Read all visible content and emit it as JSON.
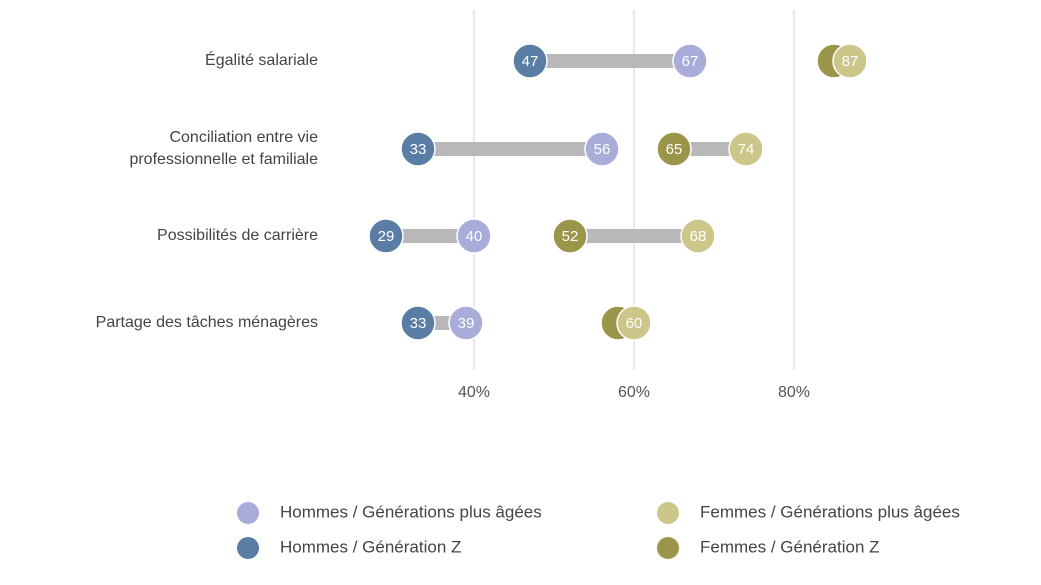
{
  "chart_data": {
    "type": "dumbbell",
    "categories": [
      "Égalité salariale",
      [
        "Conciliation entre vie",
        "professionnelle et familiale"
      ],
      "Possibilités de carrière",
      "Partage des tâches ménagères"
    ],
    "series": [
      {
        "name": "Hommes / Générations plus âgées",
        "color": "#a7acd9",
        "values": [
          67,
          56,
          40,
          39
        ]
      },
      {
        "name": "Femmes / Générations plus âgées",
        "color": "#cdc68b",
        "values": [
          87,
          74,
          68,
          60
        ]
      },
      {
        "name": "Hommes / Génération Z",
        "color": "#5a7da6",
        "values": [
          47,
          33,
          29,
          33
        ]
      },
      {
        "name": "Femmes / Génération Z",
        "color": "#9a9548",
        "values": [
          85,
          65,
          52,
          58
        ],
        "value_labels": [
          null,
          65,
          52,
          null
        ]
      }
    ],
    "xlim": [
      25,
      90
    ],
    "xticks": [
      {
        "value": 40,
        "label": "40%"
      },
      {
        "value": 60,
        "label": "60%"
      },
      {
        "value": 80,
        "label": "80%"
      }
    ],
    "grid": true
  }
}
